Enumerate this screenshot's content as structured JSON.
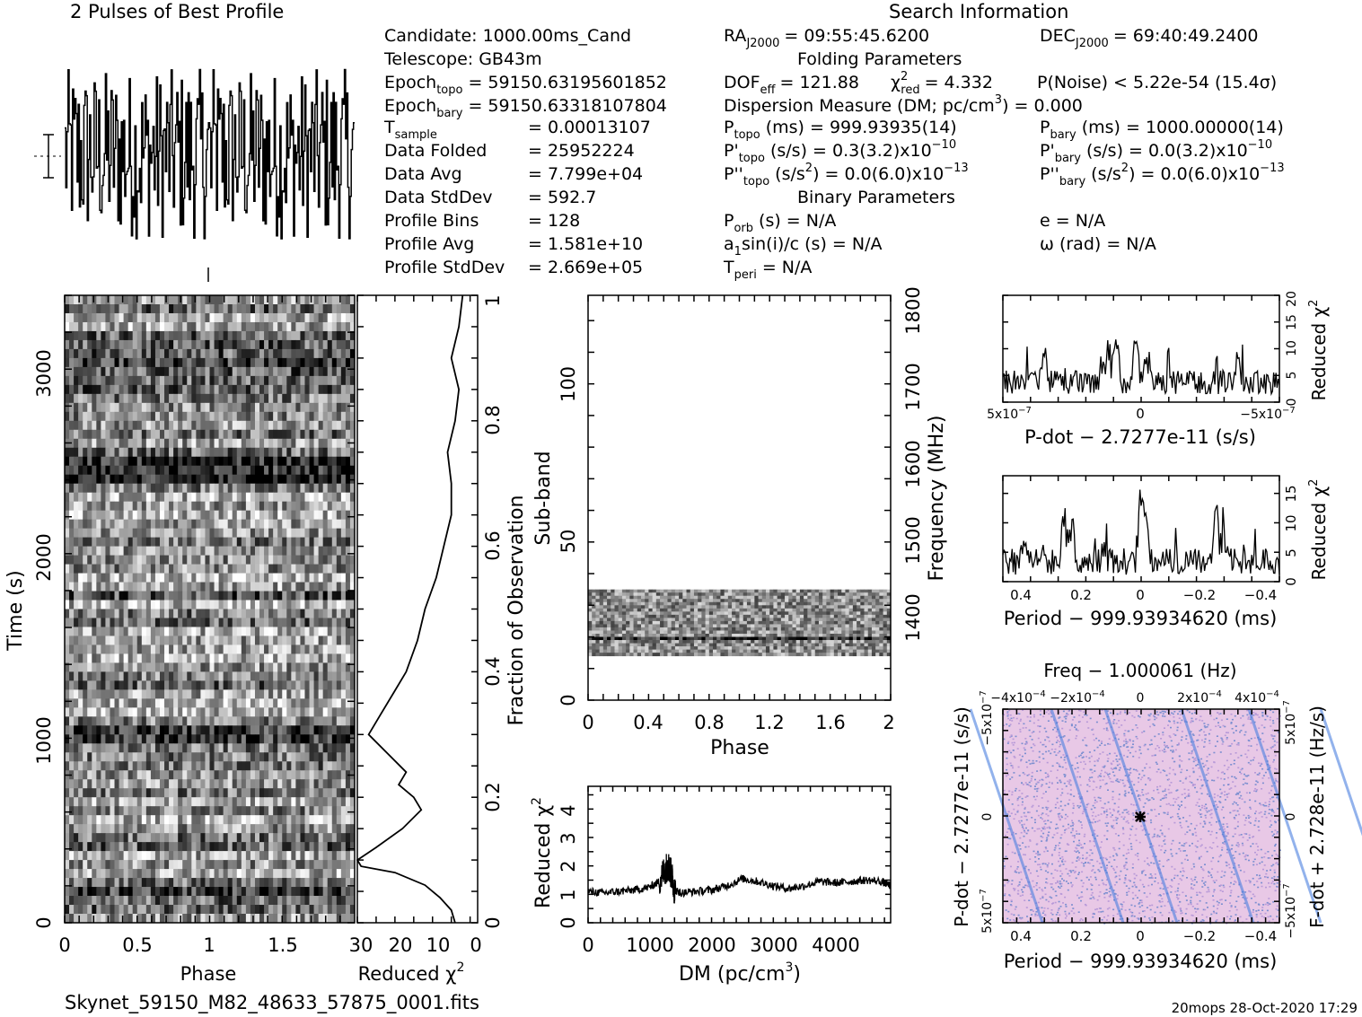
{
  "header": {
    "profile_title": "2 Pulses of Best Profile",
    "search_title": "Search Information",
    "folding_title": "Folding Parameters",
    "binary_title": "Binary Parameters",
    "filename": "Skynet_59150_M82_48633_57875_0001.fits",
    "footer": "20mops 28-Oct-2020 17:29"
  },
  "info": {
    "candidate": "Candidate:  1000.00ms_Cand",
    "telescope": "Telescope:  GB43m",
    "epoch_topo_label": "Epoch",
    "epoch_topo_sub": "topo",
    "epoch_topo_value": "= 59150.63195601852",
    "epoch_bary_label": "Epoch",
    "epoch_bary_sub": "bary",
    "epoch_bary_value": "= 59150.63318107804",
    "tsample_label": "T",
    "tsample_sub": "sample",
    "tsample_value": "=   0.00013107",
    "data_folded": "Data Folded",
    "data_folded_value": "=   25952224",
    "data_avg": "Data Avg",
    "data_avg_value": "=   7.799e+04",
    "data_stddev": "Data StdDev",
    "data_stddev_value": "=   592.7",
    "profile_bins": "Profile Bins",
    "profile_bins_value": "=   128",
    "profile_avg": "Profile Avg",
    "profile_avg_value": "=   1.581e+10",
    "profile_stddev": "Profile StdDev",
    "profile_stddev_value": "=   2.669e+05"
  },
  "search": {
    "ra_label": "RA",
    "ra_sub": "J2000",
    "ra_value": "= 09:55:45.6200",
    "dec_label": "DEC",
    "dec_sub": "J2000",
    "dec_value": "= 69:40:49.2400",
    "dof_label": "DOF",
    "dof_sub": "eff",
    "dof_value": "= 121.88",
    "chi_label": "χ",
    "chi_sup": "2",
    "chi_sub": "red",
    "chi_value": "= 4.332",
    "pnoise": "P(Noise) < 5.22e-54  (15.4σ)",
    "dm_line": "Dispersion Measure (DM; pc/cm",
    "dm_sup": "3",
    "dm_tail": ") = 0.000",
    "ptopo_label": "P",
    "ptopo_sub": "topo",
    "ptopo_value": "(ms) =  999.93935(14)",
    "pbary_label": "P",
    "pbary_sub": "bary",
    "pbary_value": "(ms) =  1000.00000(14)",
    "pdtopo_label": "P'",
    "pdtopo_sub": "topo",
    "pdtopo_value": "(s/s) =  0.3(3.2)x10",
    "pdtopo_exp": "−10",
    "pdbary_label": "P'",
    "pdbary_sub": "bary",
    "pdbary_value": "(s/s) = 0.0(3.2)x10",
    "pdbary_exp": "−10",
    "pddtopo_label": "P''",
    "pddtopo_sub": "topo",
    "pddtopo_value": "(s/s",
    "pddtopo_value2": ") = 0.0(6.0)x10",
    "pddtopo_exp": "−13",
    "pddbary_label": "P''",
    "pddbary_sub": "bary",
    "pddbary_value": "(s/s",
    "pddbary_value2": ") = 0.0(6.0)x10",
    "pddbary_exp": "−13",
    "porb_label": "P",
    "porb_sub": "orb",
    "porb_value": "(s) = N/A",
    "e_value": "e = N/A",
    "a1_label": "a",
    "a1_sub": "1",
    "a1_value": "sin(i)/c (s) = N/A",
    "omega_value": "ω (rad) = N/A",
    "tperi_label": "T",
    "tperi_sub": "peri",
    "tperi_value": "= N/A"
  },
  "chart_data": [
    {
      "id": "profile",
      "type": "line",
      "title": "2 Pulses of Best Profile",
      "x": "Phase 0–2 (2 cycles of 128 bins)",
      "values_note": "noisy profile, no significant pulse"
    },
    {
      "id": "time_phase",
      "type": "heatmap",
      "xlabel": "Phase",
      "ylabel": "Time (s)",
      "xlim": [
        0,
        2
      ],
      "ylim": [
        0,
        3400
      ],
      "xticks": [
        "0",
        "0.5",
        "1",
        "1.5"
      ],
      "yticks": [
        "0",
        "1000",
        "2000",
        "3000"
      ]
    },
    {
      "id": "time_chi2",
      "type": "line",
      "xlabel": "Reduced χ",
      "xlabel_sup": "2",
      "xticks": [
        "30",
        "20",
        "10",
        "0"
      ],
      "ylabel": "Fraction of Observation",
      "yticks": [
        "0",
        "0.2",
        "0.4",
        "0.6",
        "0.8",
        "1"
      ],
      "x": [
        4,
        5,
        8,
        12,
        20,
        29,
        30,
        25,
        18,
        13,
        15,
        19,
        17,
        22,
        27,
        24,
        20,
        17,
        14,
        12,
        9,
        7,
        5,
        5,
        6,
        4,
        3,
        5,
        3,
        2
      ],
      "y": [
        0,
        0.02,
        0.04,
        0.06,
        0.08,
        0.09,
        0.1,
        0.12,
        0.15,
        0.18,
        0.2,
        0.22,
        0.24,
        0.27,
        0.3,
        0.33,
        0.37,
        0.4,
        0.45,
        0.5,
        0.55,
        0.6,
        0.65,
        0.7,
        0.75,
        0.8,
        0.85,
        0.9,
        0.95,
        1.0
      ]
    },
    {
      "id": "subband_phase",
      "type": "heatmap",
      "xlabel": "Phase",
      "ylabel": "Sub-band",
      "ylabel_right": "Frequency (MHz)",
      "xlim": [
        0,
        2
      ],
      "ylim": [
        0,
        128
      ],
      "xticks": [
        "0",
        "0.4",
        "0.8",
        "1.2",
        "1.6",
        "2"
      ],
      "yticks": [
        "0",
        "50",
        "100"
      ],
      "yticks_right": [
        "1400",
        "1500",
        "1600",
        "1700",
        "1800"
      ],
      "active_band": [
        14,
        35
      ]
    },
    {
      "id": "dm_chi2",
      "type": "line",
      "xlabel": "DM (pc/cm",
      "xlabel_sup": "3",
      "xlabel_tail": ")",
      "ylabel": "Reduced χ",
      "ylabel_sup": "2",
      "xlim": [
        0,
        4900
      ],
      "ylim": [
        0,
        4.8
      ],
      "xticks": [
        "0",
        "1000",
        "2000",
        "3000",
        "4000"
      ],
      "yticks": [
        "0",
        "1",
        "2",
        "3",
        "4"
      ],
      "x": [
        0,
        250,
        500,
        750,
        1000,
        1150,
        1250,
        1300,
        1350,
        1400,
        1500,
        1750,
        2000,
        2250,
        2500,
        2750,
        3000,
        3250,
        3500,
        3750,
        4000,
        4250,
        4500,
        4750,
        4900
      ],
      "y": [
        1.1,
        1.05,
        1.1,
        1.15,
        1.25,
        1.45,
        1.9,
        2.0,
        1.7,
        1.15,
        1.05,
        1.1,
        1.15,
        1.3,
        1.55,
        1.45,
        1.3,
        1.2,
        1.3,
        1.45,
        1.4,
        1.45,
        1.5,
        1.45,
        1.3
      ]
    },
    {
      "id": "pdot_chi2",
      "type": "line",
      "xlabel": "P-dot − 2.7277e-11 (s/s)",
      "ylabel": "Reduced χ",
      "ylabel_sup": "2",
      "xticks": [
        "5x10",
        "0",
        "−5x10"
      ],
      "xtick_exp": "−7",
      "yticks": [
        "0",
        "5",
        "10",
        "15",
        "20"
      ],
      "ylim": [
        0,
        20
      ]
    },
    {
      "id": "period_chi2",
      "type": "line",
      "xlabel": "Period − 999.93934620 (ms)",
      "ylabel": "Reduced χ",
      "ylabel_sup": "2",
      "xticks": [
        "0.4",
        "0.2",
        "0",
        "−0.2",
        "−0.4"
      ],
      "yticks": [
        "0",
        "5",
        "10",
        "15"
      ],
      "ylim": [
        0,
        18
      ]
    },
    {
      "id": "p_pdot",
      "type": "heatmap",
      "title": "Freq − 1.000061 (Hz)",
      "xlabel": "Period − 999.93934620 (ms)",
      "ylabel": "P-dot − 2.7277e-11 (s/s)",
      "ylabel_right": "F-dot + 2.728e-11 (Hz/s)",
      "xticks": [
        "0.4",
        "0.2",
        "0",
        "−0.2",
        "−0.4"
      ],
      "xticks_top": [
        "−4x10",
        "−2x10",
        "0",
        "2x10",
        "4x10"
      ],
      "xtick_top_exp": "−4",
      "yticks": [
        "5x10",
        "0",
        "−5x10"
      ],
      "ytick_exp": "−7",
      "yticks_right": [
        "−5x10",
        "0",
        "5x10"
      ],
      "ytick_right_exp": "−7"
    }
  ]
}
